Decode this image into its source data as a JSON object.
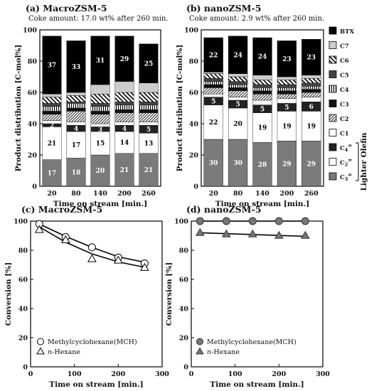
{
  "legend": {
    "items": [
      {
        "label": "BTX",
        "fill": "#000000",
        "pattern": "solid"
      },
      {
        "label": "C7",
        "fill": "#cccccc",
        "pattern": "solid"
      },
      {
        "label": "C6",
        "fill": "#ffffff",
        "pattern": "bigdiag"
      },
      {
        "label": "C5",
        "fill": "#444444",
        "pattern": "solid"
      },
      {
        "label": "C4",
        "fill": "#ffffff",
        "pattern": "vlines"
      },
      {
        "label": "C3",
        "fill": "#111111",
        "pattern": "solid"
      },
      {
        "label": "C2",
        "fill": "#ffffff",
        "pattern": "diag"
      },
      {
        "label": "C1",
        "fill": "#ffffff",
        "pattern": "solid"
      },
      {
        "label": "C4=",
        "fill": "#222222",
        "pattern": "solid"
      },
      {
        "label": "C2=",
        "fill": "#ffffff",
        "pattern": "solid"
      },
      {
        "label": "C3=",
        "fill": "#7a7a7a",
        "pattern": "solid"
      }
    ],
    "group_label": "Lighter Olefin"
  },
  "chart_data": [
    {
      "id": "a",
      "type": "bar",
      "stacked": true,
      "title": "(a) MacroZSM-5",
      "subtitle": "Coke amount: 17.0 wt% after 260 min.",
      "xlabel": "Time on stream [min.]",
      "ylabel": "Product distribution [C-mol%]",
      "ylim": [
        0,
        100
      ],
      "yticks": [
        "0",
        "20",
        "40",
        "60",
        "80",
        "100"
      ],
      "categories": [
        "20",
        "80",
        "140",
        "200",
        "260"
      ],
      "series": [
        {
          "name": "C3=",
          "values": [
            17,
            18,
            20,
            21,
            21
          ],
          "labels": [
            "17",
            "18",
            "20",
            "21",
            "21"
          ]
        },
        {
          "name": "C2=",
          "values": [
            21,
            17,
            15,
            14,
            13
          ],
          "labels": [
            "21",
            "17",
            "15",
            "14",
            "13"
          ]
        },
        {
          "name": "C4=",
          "values": [
            2,
            4,
            3,
            4,
            5
          ],
          "labels": [
            "2",
            "4",
            "3",
            "4",
            "5"
          ]
        },
        {
          "name": "C1",
          "values": [
            2,
            2,
            2,
            2,
            2
          ],
          "labels": [
            "",
            "",
            "",
            "",
            ""
          ]
        },
        {
          "name": "C2",
          "values": [
            4,
            7,
            6,
            6,
            6
          ],
          "labels": [
            "",
            "",
            "",
            "",
            ""
          ]
        },
        {
          "name": "C3",
          "values": [
            2,
            2,
            2,
            2,
            2
          ],
          "labels": [
            "",
            "",
            "",
            "",
            ""
          ]
        },
        {
          "name": "C4",
          "values": [
            3,
            3,
            3,
            3,
            3
          ],
          "labels": [
            "",
            "",
            "",
            "",
            ""
          ]
        },
        {
          "name": "C5",
          "values": [
            2,
            1,
            2,
            2,
            2
          ],
          "labels": [
            "",
            "",
            "",
            "",
            ""
          ]
        },
        {
          "name": "C6",
          "values": [
            4,
            4,
            6,
            6,
            6
          ],
          "labels": [
            "",
            "",
            "",
            "",
            ""
          ]
        },
        {
          "name": "C7",
          "values": [
            2,
            2,
            6,
            7,
            6
          ],
          "labels": [
            "",
            "",
            "",
            "",
            ""
          ]
        },
        {
          "name": "BTX",
          "values": [
            37,
            33,
            31,
            29,
            25
          ],
          "labels": [
            "37",
            "33",
            "31",
            "29",
            "25"
          ]
        }
      ]
    },
    {
      "id": "b",
      "type": "bar",
      "stacked": true,
      "title": "(b) nanoZSM-5",
      "subtitle": "Coke amount: 2.9 wt% after 260 min.",
      "xlabel": "Time on stream [min.]",
      "ylabel": "Product distribution [C-mol%]",
      "ylim": [
        0,
        100
      ],
      "yticks": [
        "0",
        "20",
        "40",
        "60",
        "80",
        "100"
      ],
      "categories": [
        "20",
        "80",
        "140",
        "200",
        "260"
      ],
      "series": [
        {
          "name": "C3=",
          "values": [
            30,
            30,
            28,
            29,
            29
          ],
          "labels": [
            "30",
            "30",
            "28",
            "29",
            "29"
          ]
        },
        {
          "name": "C2=",
          "values": [
            22,
            20,
            19,
            19,
            19
          ],
          "labels": [
            "22",
            "20",
            "19",
            "19",
            "19"
          ]
        },
        {
          "name": "C4=",
          "values": [
            5,
            5,
            5,
            5,
            6
          ],
          "labels": [
            "5",
            "5",
            "5",
            "5",
            "6"
          ]
        },
        {
          "name": "C1",
          "values": [
            2,
            2,
            3,
            3,
            3
          ],
          "labels": [
            "",
            "",
            "",
            "",
            ""
          ]
        },
        {
          "name": "C2",
          "values": [
            4,
            4,
            4,
            3,
            3
          ],
          "labels": [
            "",
            "",
            "",
            "",
            ""
          ]
        },
        {
          "name": "C3",
          "values": [
            2,
            2,
            2,
            2,
            2
          ],
          "labels": [
            "",
            "",
            "",
            "",
            ""
          ]
        },
        {
          "name": "C4",
          "values": [
            2,
            2,
            2,
            2,
            2
          ],
          "labels": [
            "",
            "",
            "",
            "",
            ""
          ]
        },
        {
          "name": "C5",
          "values": [
            2,
            2,
            2,
            2,
            2
          ],
          "labels": [
            "",
            "",
            "",
            "",
            ""
          ]
        },
        {
          "name": "C6",
          "values": [
            3,
            3,
            3,
            3,
            3
          ],
          "labels": [
            "",
            "",
            "",
            "",
            ""
          ]
        },
        {
          "name": "C7",
          "values": [
            1,
            2,
            3,
            2,
            2
          ],
          "labels": [
            "",
            "",
            "",
            "",
            ""
          ]
        },
        {
          "name": "BTX",
          "values": [
            22,
            24,
            24,
            23,
            23
          ],
          "labels": [
            "22",
            "24",
            "24",
            "23",
            "23"
          ]
        }
      ]
    },
    {
      "id": "c",
      "type": "scatter",
      "title": "(c) MacroZSM-5",
      "xlabel": "Time on stream [min.]",
      "ylabel": "Conversion [%]",
      "xlim": [
        0,
        300
      ],
      "ylim": [
        0,
        100
      ],
      "xticks": [
        "0",
        "100",
        "200",
        "300"
      ],
      "yticks": [
        "0",
        "20",
        "40",
        "60",
        "80",
        "100"
      ],
      "series": [
        {
          "name": "Methylcyclohexane(MCH)",
          "marker": "circle-open",
          "x": [
            20,
            80,
            140,
            200,
            260
          ],
          "y": [
            98,
            89,
            82,
            75,
            71
          ],
          "fit": [
            [
              20,
              98
            ],
            [
              80,
              89.5
            ],
            [
              140,
              82
            ],
            [
              200,
              75.5
            ],
            [
              265,
              71.5
            ]
          ]
        },
        {
          "name": "n-Hexane",
          "marker": "triangle-open",
          "x": [
            20,
            80,
            140,
            200,
            260
          ],
          "y": [
            94,
            87,
            74,
            73,
            68
          ],
          "fit": [
            [
              20,
              96
            ],
            [
              80,
              85.5
            ],
            [
              140,
              77.5
            ],
            [
              200,
              72
            ],
            [
              265,
              68
            ]
          ]
        }
      ],
      "legend": [
        "Methylcyclohexane(MCH)",
        "n-Hexane"
      ]
    },
    {
      "id": "d",
      "type": "scatter",
      "title": "(d) nanoZSM-5",
      "xlabel": "Time on stream [min.]",
      "ylabel": "Conversion [%]",
      "xlim": [
        0,
        300
      ],
      "ylim": [
        0,
        100
      ],
      "xticks": [
        "0",
        "100",
        "200",
        "300"
      ],
      "yticks": [
        "0",
        "20",
        "40",
        "60",
        "80",
        "100"
      ],
      "series": [
        {
          "name": "Methylcyclohexane(MCH)",
          "marker": "circle-filled",
          "x": [
            20,
            80,
            140,
            200,
            260
          ],
          "y": [
            100,
            100,
            100,
            100,
            100
          ],
          "fit": [
            [
              20,
              100
            ],
            [
              265,
              100
            ]
          ]
        },
        {
          "name": "n-Hexane",
          "marker": "triangle-filled",
          "x": [
            20,
            80,
            140,
            200,
            260
          ],
          "y": [
            92,
            91,
            91,
            90,
            90
          ],
          "fit": [
            [
              20,
              92
            ],
            [
              265,
              89.5
            ]
          ]
        }
      ],
      "legend": [
        "Methylcyclohexane(MCH)",
        "n-Hexane"
      ]
    }
  ]
}
